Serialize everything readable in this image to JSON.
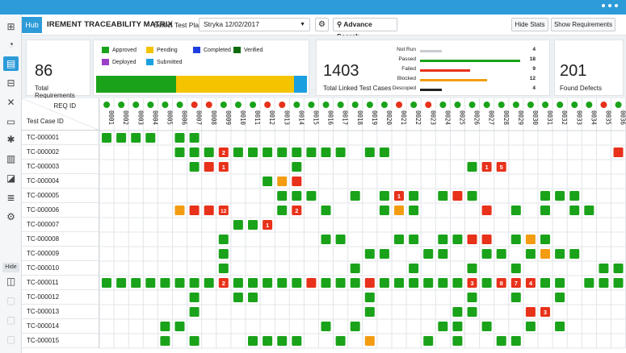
{
  "toolbar": {
    "hub_label": "Hub",
    "title": "IREMENT TRACEABILITY MATRIX",
    "plan_label": "Select Test Plan:",
    "plan_value": "Stryka 12/02/2017",
    "advanced_search": "Advance Search",
    "hide_stats": "Hide Stats",
    "show_requirements": "Show Requirements"
  },
  "sidebar": {
    "hide_label": "Hide"
  },
  "stats": {
    "total_requirements": {
      "value": "86",
      "label": "Total Requirements"
    },
    "total_linked": {
      "value": "1403",
      "label": "Total Linked Test Cases"
    },
    "found_defects": {
      "value": "201",
      "label": "Found Defects"
    },
    "legend": [
      {
        "label": "Approved",
        "color": "#1aa31a"
      },
      {
        "label": "Pending",
        "color": "#f5c400"
      },
      {
        "label": "Completed",
        "color": "#1e3fe0"
      },
      {
        "label": "Verified",
        "color": "#0d6b0d"
      },
      {
        "label": "Deployed",
        "color": "#9b3fc9"
      },
      {
        "label": "Submitted",
        "color": "#1aa0e0"
      }
    ],
    "stack_fractions": [
      {
        "color": "#1aa31a",
        "fraction": 0.38
      },
      {
        "color": "#f5c400",
        "fraction": 0.56
      },
      {
        "color": "#1aa0e0",
        "fraction": 0.06
      }
    ],
    "linked": [
      {
        "label": "Not Run",
        "count": "4",
        "color": "#c8ccd0",
        "fraction": 0.22
      },
      {
        "label": "Passed",
        "count": "18",
        "color": "#1aa31a",
        "fraction": 1.0
      },
      {
        "label": "Failed",
        "count": "9",
        "color": "#e8311a",
        "fraction": 0.5
      },
      {
        "label": "Blocked",
        "count": "12",
        "color": "#f39c12",
        "fraction": 0.67
      },
      {
        "label": "Descoped",
        "count": "4",
        "color": "#222222",
        "fraction": 0.22
      }
    ]
  },
  "matrix": {
    "req_header": "REQ ID",
    "tc_header": "Test Case ID",
    "req_ids": [
      "0001",
      "0002",
      "0003",
      "0004",
      "0005",
      "0006",
      "0007",
      "0008",
      "0009",
      "0010",
      "0011",
      "0012",
      "0013",
      "0014",
      "0015",
      "0016",
      "0017",
      "0018",
      "0019",
      "0020",
      "0021",
      "0022",
      "0023",
      "0024",
      "0025",
      "0026",
      "0027",
      "0028",
      "0029",
      "0030",
      "0031",
      "0032",
      "0033",
      "0034",
      "0035",
      "0036"
    ],
    "req_status": [
      "g",
      "g",
      "g",
      "g",
      "g",
      "g",
      "r",
      "r",
      "g",
      "g",
      "g",
      "r",
      "r",
      "g",
      "g",
      "g",
      "g",
      "g",
      "g",
      "g",
      "r",
      "g",
      "r",
      "g",
      "g",
      "g",
      "g",
      "g",
      "g",
      "g",
      "g",
      "g",
      "g",
      "g",
      "r",
      "g"
    ],
    "test_cases": [
      "TC-000001",
      "TC-000002",
      "TC-000003",
      "TC-000004",
      "TC-000005",
      "TC-000006",
      "TC-000007",
      "TC-000008",
      "TC-000009",
      "TC-000010",
      "TC-000011",
      "TC-000012",
      "TC-000013",
      "TC-000014",
      "TC-000015"
    ],
    "rows": [
      "gggg.gg.............................",
      ".....ggg2gggggggg.gg...............r",
      "......gr1....g...........g15........gg",
      "...........gor.......................",
      "............ggg..g.g1g.grg....ggg...g",
      ".....orr12...g2.g...gog....r.g.g.gg.",
      ".........gg1.........................",
      "........g......gg...gg.ggrr.gog.....",
      "........g.........gg..gg..gg.gogg...",
      "........g........g...g...g..g.....ggg",
      "gggggggg2gggggrgggrgggggg3g874gg.ggg",
      "......g..gg.......g......g..g..g.....",
      "......g...........g.....gg...r3......g",
      "....gg.........g.g.....gg.g..g.g....",
      "....g.g...gggg..g.o...g.g..gg.......g"
    ]
  }
}
